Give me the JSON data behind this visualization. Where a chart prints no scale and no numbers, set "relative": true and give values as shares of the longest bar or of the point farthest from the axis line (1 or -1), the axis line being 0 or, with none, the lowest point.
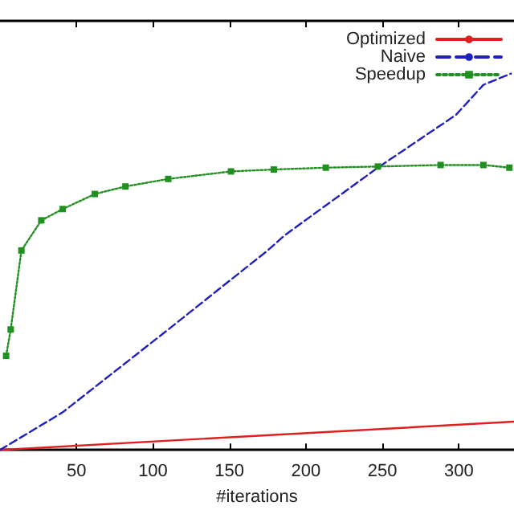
{
  "chart_data": {
    "type": "line",
    "xlabel": "#iterations",
    "relative": true,
    "xlim": [
      0,
      336
    ],
    "xticks": [
      50,
      100,
      150,
      200,
      250,
      300
    ],
    "legend": "top right",
    "grid": false,
    "series": [
      {
        "name": "Optimized",
        "color": "#e02020",
        "line_style": "solid",
        "marker": "none",
        "x": [
          0,
          336
        ],
        "values": [
          0,
          0.075
        ]
      },
      {
        "name": "Naive",
        "color": "#2020c0",
        "line_style": "dashed",
        "marker": "none",
        "x": [
          0,
          41,
          110,
          144,
          175,
          186,
          247,
          298,
          316,
          334
        ],
        "values": [
          0,
          0.1,
          0.32,
          0.43,
          0.53,
          0.57,
          0.75,
          0.89,
          0.97,
          1.0
        ]
      },
      {
        "name": "Speedup",
        "color": "#209020",
        "line_style": "dotted",
        "marker": "square",
        "x": [
          4,
          7,
          14,
          27,
          41,
          62,
          82,
          110,
          151,
          179,
          213,
          247,
          288,
          316,
          333
        ],
        "values": [
          0.25,
          0.32,
          0.53,
          0.61,
          0.64,
          0.68,
          0.7,
          0.72,
          0.74,
          0.745,
          0.75,
          0.753,
          0.757,
          0.757,
          0.75
        ]
      }
    ]
  }
}
